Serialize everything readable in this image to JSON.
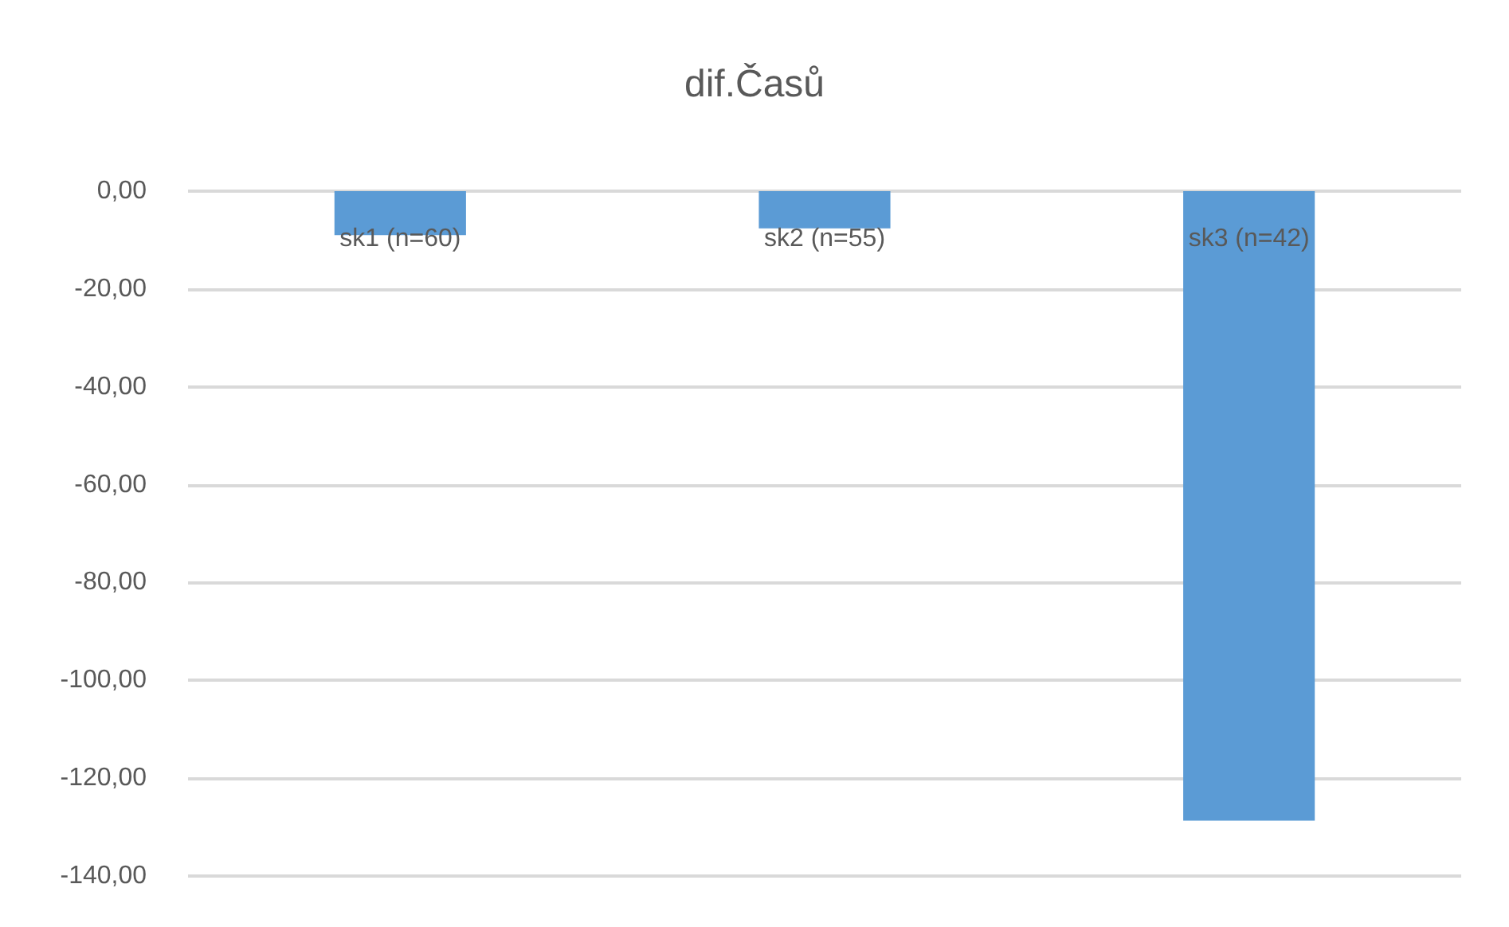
{
  "chart_data": {
    "type": "bar",
    "title": "dif.Časů",
    "categories": [
      "sk1 (n=60)",
      "sk2 (n=55)",
      "sk3 (n=42)"
    ],
    "values": [
      -9,
      -7.6,
      -128.7
    ],
    "color": "#5b9bd5",
    "ylim": [
      -140,
      0
    ],
    "yticks": [
      {
        "value": 0,
        "label": "0,00"
      },
      {
        "value": -20,
        "label": "-20,00"
      },
      {
        "value": -40,
        "label": "-40,00"
      },
      {
        "value": -60,
        "label": "-60,00"
      },
      {
        "value": -80,
        "label": "-80,00"
      },
      {
        "value": -100,
        "label": "-100,00"
      },
      {
        "value": -120,
        "label": "-120,00"
      },
      {
        "value": -140,
        "label": "-140,00"
      }
    ],
    "grid": true
  }
}
